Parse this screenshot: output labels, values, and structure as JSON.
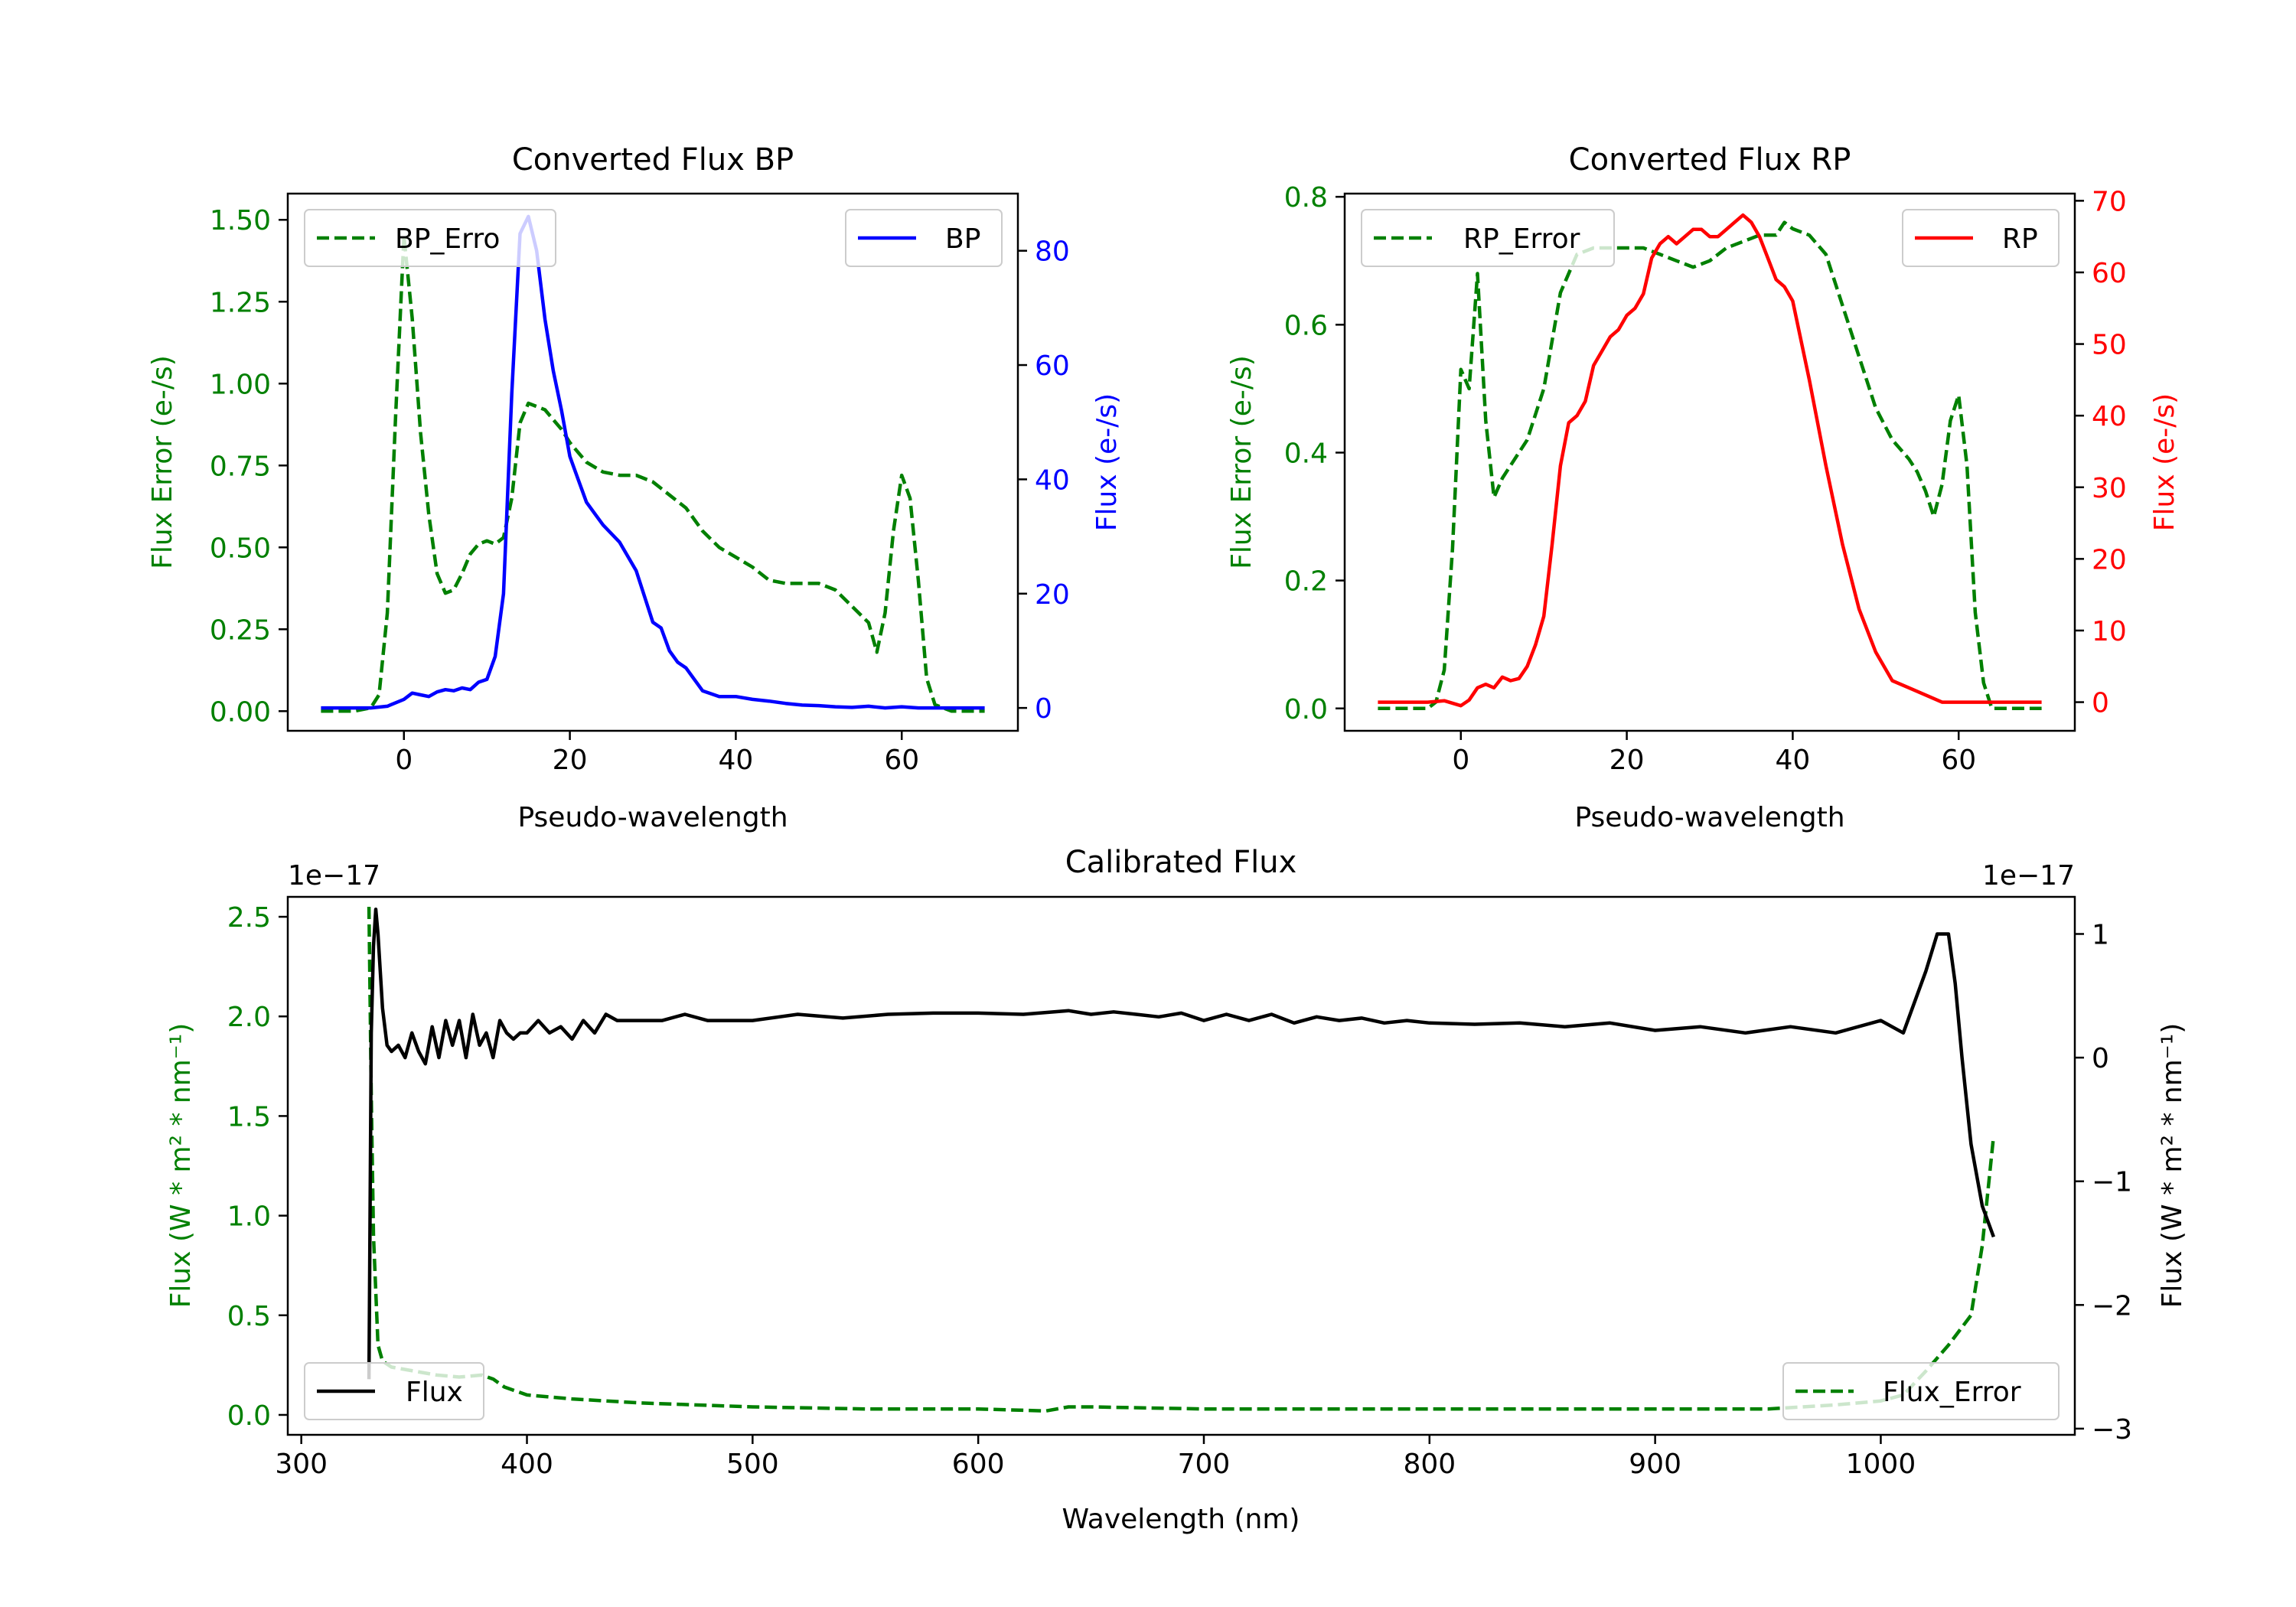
{
  "colors": {
    "bp": "#0000ff",
    "rp": "#ff0000",
    "error": "#008000",
    "flux": "#000000",
    "axis": "#000000"
  },
  "chart_data": [
    {
      "id": "bp",
      "type": "line",
      "title": "Converted Flux BP",
      "xlabel": "Pseudo-wavelength",
      "ylabel_left": "Flux Error (e-/s)",
      "ylabel_right": "Flux (e-/s)",
      "xlim": [
        -14,
        74
      ],
      "ylim_left": [
        -0.06,
        1.58
      ],
      "ylim_right": [
        -4,
        90
      ],
      "xticks": [
        0,
        20,
        40,
        60
      ],
      "yticks_left": [
        "0.00",
        "0.25",
        "0.50",
        "0.75",
        "1.00",
        "1.25",
        "1.50"
      ],
      "yticks_right": [
        "0",
        "20",
        "40",
        "60",
        "80"
      ],
      "legend_left": {
        "label": "BP_Erro",
        "position": "upper-left"
      },
      "legend_right": {
        "label": "BP",
        "position": "upper-right"
      },
      "series": [
        {
          "name": "BP_Error",
          "axis": "left",
          "style": "dashed",
          "color": "#008000",
          "x": [
            -10,
            -6,
            -4,
            -3,
            -2,
            -1,
            0,
            1,
            2,
            3,
            4,
            5,
            6,
            7,
            8,
            9,
            10,
            11,
            12,
            13,
            14,
            15,
            16,
            17,
            18,
            19,
            20,
            21,
            22,
            24,
            26,
            28,
            30,
            32,
            34,
            36,
            38,
            40,
            42,
            44,
            46,
            48,
            50,
            52,
            54,
            56,
            57,
            58,
            59,
            60,
            61,
            62,
            63,
            64,
            66,
            70
          ],
          "y": [
            0.0,
            0.0,
            0.01,
            0.05,
            0.3,
            0.9,
            1.45,
            1.2,
            0.85,
            0.6,
            0.42,
            0.36,
            0.37,
            0.42,
            0.48,
            0.51,
            0.52,
            0.51,
            0.53,
            0.65,
            0.88,
            0.94,
            0.93,
            0.92,
            0.89,
            0.86,
            0.82,
            0.79,
            0.76,
            0.73,
            0.72,
            0.72,
            0.7,
            0.66,
            0.62,
            0.55,
            0.5,
            0.47,
            0.44,
            0.4,
            0.39,
            0.39,
            0.39,
            0.37,
            0.32,
            0.27,
            0.18,
            0.3,
            0.55,
            0.72,
            0.65,
            0.4,
            0.1,
            0.02,
            0.0,
            0.0
          ]
        },
        {
          "name": "BP",
          "axis": "right",
          "style": "solid",
          "color": "#0000ff",
          "x": [
            -10,
            -4,
            -2,
            0,
            1,
            2,
            3,
            4,
            5,
            6,
            7,
            8,
            9,
            10,
            11,
            12,
            13,
            14,
            15,
            16,
            17,
            18,
            19,
            20,
            21,
            22,
            23,
            24,
            26,
            28,
            30,
            31,
            32,
            33,
            34,
            35,
            36,
            37,
            38,
            40,
            42,
            44,
            46,
            48,
            50,
            52,
            54,
            56,
            58,
            60,
            62,
            66,
            70
          ],
          "y": [
            0,
            0,
            0.3,
            1.5,
            2.6,
            2.3,
            2.0,
            2.8,
            3.2,
            3.0,
            3.5,
            3.2,
            4.5,
            5.0,
            9.0,
            20,
            55,
            83,
            86,
            80,
            68,
            59,
            52,
            44,
            40,
            36,
            34,
            32,
            29,
            24,
            15,
            14,
            10,
            8,
            7,
            5,
            3,
            2.5,
            2.0,
            2.0,
            1.5,
            1.2,
            0.8,
            0.5,
            0.4,
            0.2,
            0.1,
            0.3,
            0,
            0.2,
            0,
            0,
            0
          ]
        }
      ]
    },
    {
      "id": "rp",
      "type": "line",
      "title": "Converted Flux RP",
      "xlabel": "Pseudo-wavelength",
      "ylabel_left": "Flux Error (e-/s)",
      "ylabel_right": "Flux (e-/s)",
      "xlim": [
        -14,
        74
      ],
      "ylim_left": [
        -0.035,
        0.805
      ],
      "ylim_right": [
        -4,
        71
      ],
      "xticks": [
        0,
        20,
        40,
        60
      ],
      "yticks_left": [
        "0.0",
        "0.2",
        "0.4",
        "0.6",
        "0.8"
      ],
      "yticks_right": [
        "0",
        "10",
        "20",
        "30",
        "40",
        "50",
        "60",
        "70"
      ],
      "legend_left": {
        "label": "RP_Error",
        "position": "upper-left"
      },
      "legend_right": {
        "label": "RP",
        "position": "upper-right"
      },
      "series": [
        {
          "name": "RP_Error",
          "axis": "left",
          "style": "dashed",
          "color": "#008000",
          "x": [
            -10,
            -4,
            -3,
            -2,
            -1,
            0,
            1,
            2,
            3,
            4,
            5,
            6,
            8,
            10,
            12,
            14,
            16,
            18,
            20,
            22,
            24,
            26,
            28,
            30,
            32,
            34,
            36,
            38,
            39,
            40,
            42,
            44,
            46,
            48,
            50,
            52,
            54,
            55,
            56,
            57,
            58,
            59,
            60,
            61,
            62,
            63,
            64,
            66,
            70
          ],
          "y": [
            0.0,
            0.0,
            0.01,
            0.06,
            0.25,
            0.53,
            0.5,
            0.68,
            0.45,
            0.33,
            0.36,
            0.38,
            0.42,
            0.5,
            0.65,
            0.71,
            0.72,
            0.72,
            0.72,
            0.72,
            0.71,
            0.7,
            0.69,
            0.7,
            0.72,
            0.73,
            0.74,
            0.74,
            0.76,
            0.75,
            0.74,
            0.71,
            0.63,
            0.55,
            0.47,
            0.42,
            0.39,
            0.37,
            0.34,
            0.3,
            0.35,
            0.45,
            0.49,
            0.38,
            0.15,
            0.04,
            0.0,
            0.0,
            0.0
          ]
        },
        {
          "name": "RP",
          "axis": "right",
          "style": "solid",
          "color": "#ff0000",
          "x": [
            -10,
            -4,
            -2,
            0,
            1,
            2,
            3,
            4,
            5,
            6,
            7,
            8,
            9,
            10,
            11,
            12,
            13,
            14,
            15,
            16,
            17,
            18,
            19,
            20,
            21,
            22,
            23,
            24,
            25,
            26,
            27,
            28,
            29,
            30,
            31,
            32,
            33,
            34,
            35,
            36,
            37,
            38,
            39,
            40,
            42,
            44,
            46,
            48,
            50,
            52,
            54,
            56,
            58,
            60,
            62,
            66,
            70
          ],
          "y": [
            0,
            0,
            0.2,
            -0.5,
            0.3,
            2,
            2.5,
            2,
            3.5,
            3,
            3.3,
            5,
            8,
            12,
            22,
            33,
            39,
            40,
            42,
            47,
            49,
            51,
            52,
            54,
            55,
            57,
            62,
            64,
            65,
            64,
            65,
            66,
            66,
            65,
            65,
            66,
            67,
            68,
            67,
            65,
            62,
            59,
            58,
            56,
            45,
            33,
            22,
            13,
            7,
            3,
            2,
            1,
            0,
            0,
            0,
            0,
            0
          ]
        }
      ]
    },
    {
      "id": "calibrated",
      "type": "line",
      "title": "Calibrated Flux",
      "xlabel": "Wavelength (nm)",
      "ylabel_left": "Flux (W * m² * nm⁻¹)",
      "ylabel_right": "Flux (W * m² * nm⁻¹)",
      "offset_left": "1e−17",
      "offset_right": "1e−17",
      "xlim": [
        294,
        1086
      ],
      "ylim_left": [
        -0.1,
        2.6
      ],
      "ylim_right": [
        -3.05,
        1.3
      ],
      "xticks": [
        300,
        400,
        500,
        600,
        700,
        800,
        900,
        1000
      ],
      "yticks_left": [
        "0.0",
        "0.5",
        "1.0",
        "1.5",
        "2.0",
        "2.5"
      ],
      "yticks_right": [
        "−3",
        "−2",
        "−1",
        "0",
        "1"
      ],
      "legend_left": {
        "label": "Flux",
        "position": "lower-left"
      },
      "legend_right": {
        "label": "Flux_Error",
        "position": "lower-right"
      },
      "series": [
        {
          "name": "Flux_Error",
          "axis": "left",
          "style": "dashed",
          "color": "#008000",
          "x": [
            330,
            331,
            332,
            334,
            336,
            340,
            350,
            360,
            370,
            380,
            385,
            390,
            400,
            420,
            450,
            500,
            550,
            600,
            630,
            640,
            650,
            700,
            800,
            900,
            950,
            980,
            1000,
            1010,
            1020,
            1030,
            1040,
            1045,
            1050
          ],
          "y": [
            2.55,
            1.6,
            0.9,
            0.35,
            0.27,
            0.24,
            0.22,
            0.2,
            0.19,
            0.2,
            0.18,
            0.14,
            0.1,
            0.08,
            0.06,
            0.04,
            0.03,
            0.03,
            0.02,
            0.04,
            0.04,
            0.03,
            0.03,
            0.03,
            0.03,
            0.05,
            0.07,
            0.1,
            0.22,
            0.35,
            0.5,
            0.85,
            1.4
          ]
        },
        {
          "name": "Flux",
          "axis": "right",
          "style": "solid",
          "color": "#000000",
          "x": [
            330,
            331,
            332,
            333,
            334,
            336,
            338,
            340,
            343,
            346,
            349,
            352,
            355,
            358,
            361,
            364,
            367,
            370,
            373,
            376,
            379,
            382,
            385,
            388,
            391,
            394,
            397,
            400,
            405,
            410,
            415,
            420,
            425,
            430,
            435,
            440,
            450,
            460,
            470,
            480,
            490,
            500,
            520,
            540,
            560,
            580,
            600,
            620,
            640,
            650,
            660,
            670,
            680,
            690,
            700,
            710,
            720,
            730,
            740,
            750,
            760,
            770,
            780,
            790,
            800,
            820,
            840,
            860,
            880,
            900,
            920,
            940,
            960,
            980,
            1000,
            1010,
            1020,
            1025,
            1030,
            1033,
            1036,
            1040,
            1045,
            1050
          ],
          "y": [
            -2.6,
            0.2,
            0.9,
            1.2,
            1.0,
            0.4,
            0.1,
            0.05,
            0.1,
            0.0,
            0.2,
            0.05,
            -0.05,
            0.25,
            0.0,
            0.3,
            0.1,
            0.3,
            0.0,
            0.35,
            0.1,
            0.2,
            0.0,
            0.3,
            0.2,
            0.15,
            0.2,
            0.2,
            0.3,
            0.2,
            0.25,
            0.15,
            0.3,
            0.2,
            0.35,
            0.3,
            0.3,
            0.3,
            0.35,
            0.3,
            0.3,
            0.3,
            0.35,
            0.32,
            0.35,
            0.36,
            0.36,
            0.35,
            0.38,
            0.35,
            0.37,
            0.35,
            0.33,
            0.36,
            0.3,
            0.35,
            0.3,
            0.35,
            0.28,
            0.33,
            0.3,
            0.32,
            0.28,
            0.3,
            0.28,
            0.27,
            0.28,
            0.25,
            0.28,
            0.22,
            0.25,
            0.2,
            0.25,
            0.2,
            0.3,
            0.2,
            0.7,
            1.0,
            1.0,
            0.6,
            0.0,
            -0.7,
            -1.2,
            -1.45
          ]
        }
      ]
    }
  ]
}
